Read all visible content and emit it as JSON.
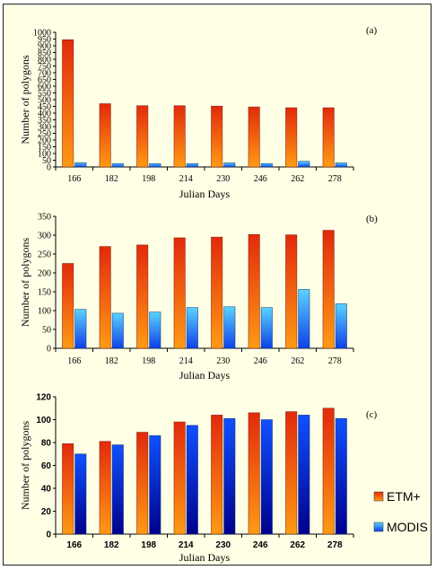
{
  "colors": {
    "etm_top": "#e22a0c",
    "etm_bottom": "#ff9a14",
    "modis_top": "#5ad2ff",
    "modis_bottom": "#1040e8",
    "modis_dark_top": "#1050ff",
    "modis_dark_bottom": "#00008c",
    "background": "#ffffe6"
  },
  "legend": {
    "entries": [
      {
        "label": "ETM+",
        "key": "etm"
      },
      {
        "label": "MODIS",
        "key": "modis"
      }
    ]
  },
  "chart_data": [
    {
      "type": "bar",
      "panel_label": "(a)",
      "categories": [
        "166",
        "182",
        "198",
        "214",
        "230",
        "246",
        "262",
        "278"
      ],
      "series": [
        {
          "name": "ETM+",
          "values": [
            945,
            470,
            455,
            455,
            452,
            446,
            440,
            440
          ]
        },
        {
          "name": "MODIS",
          "values": [
            32,
            25,
            25,
            25,
            30,
            25,
            42,
            30
          ]
        }
      ],
      "xlabel": "Julian Days",
      "ylabel": "Number of polygons",
      "ylim": [
        0,
        1000
      ],
      "yticks": [
        "0",
        "50",
        "100",
        "150",
        "200",
        "250",
        "300",
        "350",
        "400",
        "450",
        "500",
        "550",
        "600",
        "650",
        "700",
        "750",
        "800",
        "850",
        "900",
        "950",
        "1000"
      ],
      "grid": false
    },
    {
      "type": "bar",
      "panel_label": "(b)",
      "categories": [
        "166",
        "182",
        "198",
        "214",
        "230",
        "246",
        "262",
        "278"
      ],
      "series": [
        {
          "name": "ETM+",
          "values": [
            225,
            270,
            274,
            293,
            295,
            302,
            301,
            313
          ]
        },
        {
          "name": "MODIS",
          "values": [
            103,
            93,
            96,
            108,
            110,
            108,
            156,
            118
          ]
        }
      ],
      "xlabel": "Julian Days",
      "ylabel": "Number of polygons",
      "ylim": [
        0,
        350
      ],
      "yticks": [
        "0",
        "50",
        "100",
        "150",
        "200",
        "250",
        "300",
        "350"
      ],
      "grid": false
    },
    {
      "type": "bar",
      "panel_label": "(c)",
      "categories": [
        "166",
        "182",
        "198",
        "214",
        "230",
        "246",
        "262",
        "278"
      ],
      "series": [
        {
          "name": "ETM+",
          "values": [
            79,
            81,
            89,
            98,
            104,
            106,
            107,
            110
          ]
        },
        {
          "name": "MODIS",
          "values": [
            70,
            78,
            86,
            95,
            101,
            100,
            104,
            101
          ]
        }
      ],
      "xlabel": "Julian Days",
      "ylabel": "Number of polygons",
      "ylim": [
        0,
        120
      ],
      "yticks": [
        "0",
        "20",
        "40",
        "60",
        "80",
        "100",
        "120"
      ],
      "grid": false,
      "legend": "right"
    }
  ]
}
